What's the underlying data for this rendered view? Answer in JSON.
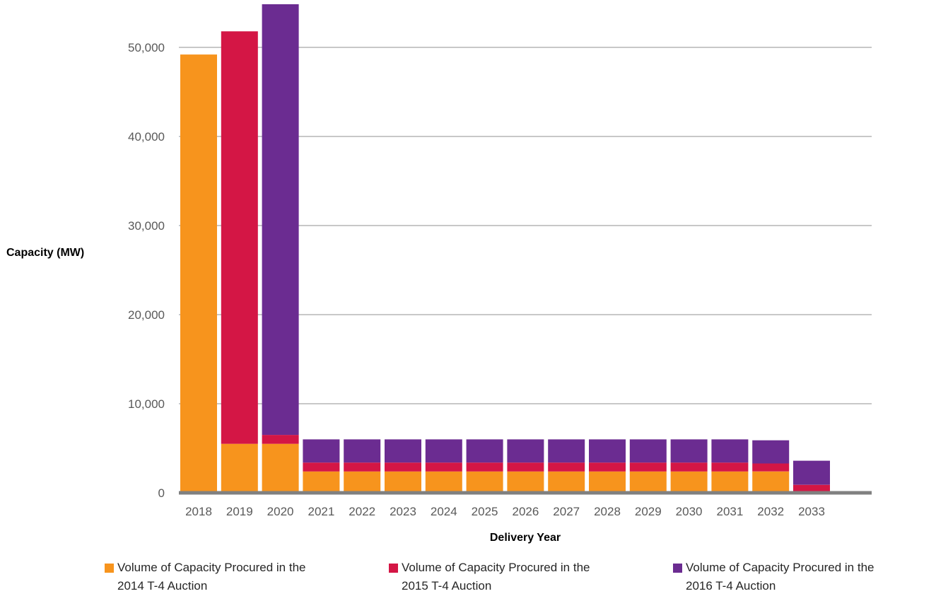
{
  "chart_data": {
    "type": "bar",
    "stacked": true,
    "xlabel": "Delivery Year",
    "ylabel": "Capacity (MW)",
    "ylim": [
      0,
      55000
    ],
    "yticks": [
      0,
      10000,
      20000,
      30000,
      40000,
      50000
    ],
    "ytick_labels": [
      "0",
      "10,000",
      "20,000",
      "30,000",
      "40,000",
      "50,000"
    ],
    "grid": true,
    "legend_position": "bottom",
    "categories": [
      "2018",
      "2019",
      "2020",
      "2021",
      "2022",
      "2023",
      "2024",
      "2025",
      "2026",
      "2027",
      "2028",
      "2029",
      "2030",
      "2031",
      "2032",
      "2033"
    ],
    "series": [
      {
        "name": "Volume of Capacity Procured in the 2014 T-4 Auction",
        "color": "#F7941D",
        "values": [
          49200,
          5500,
          5500,
          2400,
          2400,
          2400,
          2400,
          2400,
          2400,
          2400,
          2400,
          2400,
          2400,
          2400,
          2400,
          0
        ]
      },
      {
        "name": "Volume of Capacity Procured in the 2015 T-4 Auction",
        "color": "#D41645",
        "values": [
          0,
          46300,
          1000,
          1000,
          1000,
          1000,
          1000,
          1000,
          1000,
          1000,
          1000,
          1000,
          1000,
          1000,
          900,
          900
        ]
      },
      {
        "name": "Volume of Capacity Procured in the 2016 T-4 Auction",
        "color": "#6B2C91",
        "values": [
          0,
          0,
          48500,
          2600,
          2600,
          2600,
          2600,
          2600,
          2600,
          2600,
          2600,
          2600,
          2600,
          2600,
          2600,
          2700
        ]
      }
    ]
  },
  "legend": {
    "items": [
      {
        "line1": "Volume of Capacity Procured in the",
        "line2": "2014 T-4 Auction",
        "color": "#F7941D"
      },
      {
        "line1": "Volume of Capacity Procured in the",
        "line2": "2015 T-4 Auction",
        "color": "#D41645"
      },
      {
        "line1": "Volume of Capacity Procured in the",
        "line2": "2016 T-4 Auction",
        "color": "#6B2C91"
      }
    ]
  },
  "colors": {
    "gridline": "#A6A6A6",
    "baseline": "#808080"
  }
}
